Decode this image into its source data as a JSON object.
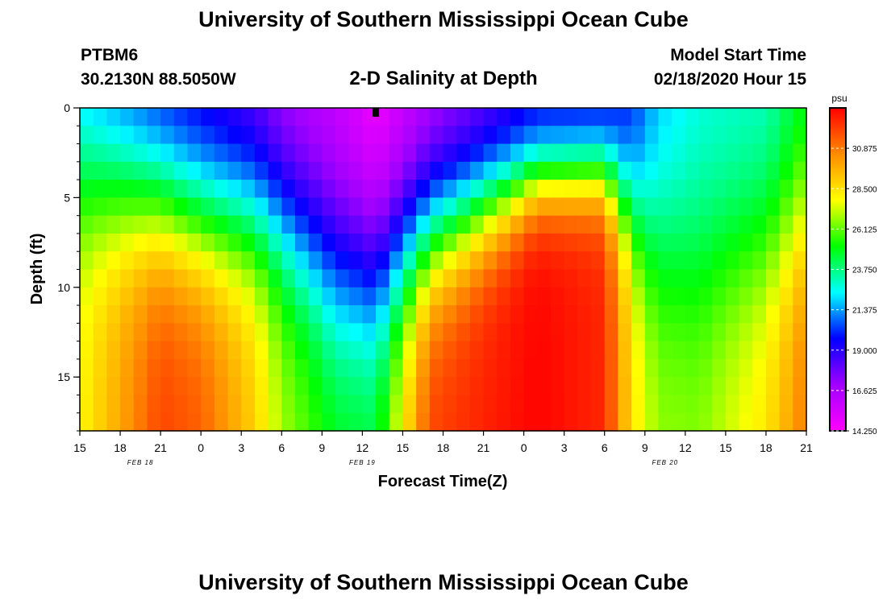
{
  "page": {
    "title_top": "University of Southern Mississippi Ocean Cube",
    "title_bottom": "University of Southern Mississippi Ocean Cube",
    "station_id": "PTBM6",
    "station_coords": "30.2130N 88.5050W",
    "plot_title": "2-D Salinity at Depth",
    "model_start_label": "Model Start Time",
    "model_start_value": "02/18/2020 Hour 15"
  },
  "chart_data": {
    "type": "heatmap",
    "variable": "Salinity",
    "units": "psu",
    "xlabel": "Forecast Time(Z)",
    "ylabel": "Depth (ft)",
    "x_ticks": [
      "15",
      "18",
      "21",
      "0",
      "3",
      "6",
      "9",
      "12",
      "15",
      "18",
      "21",
      "0",
      "3",
      "6",
      "9",
      "12",
      "15",
      "18",
      "21"
    ],
    "date_labels": [
      {
        "label": "FEB 18",
        "at_tick_index": 1.5
      },
      {
        "label": "FEB 19",
        "at_tick_index": 7
      },
      {
        "label": "FEB 20",
        "at_tick_index": 14.5
      }
    ],
    "y_ticks": [
      0,
      5,
      10,
      15
    ],
    "ylim": [
      0,
      18
    ],
    "x_range_hours": [
      0,
      54
    ],
    "colorbar_ticks": [
      14.25,
      16.625,
      19.0,
      21.375,
      23.75,
      26.125,
      28.5,
      30.875
    ],
    "colorbar_tick_labels": [
      "14.250",
      "16.625",
      "19.000",
      "21.375",
      "23.750",
      "26.125",
      "28.500",
      "30.875"
    ],
    "colorbar_range": [
      14.25,
      33.25
    ],
    "colorbar_colors": [
      "#ff00ff",
      "#a000ff",
      "#0000ff",
      "#00ffff",
      "#00ff00",
      "#ffff00",
      "#ff8c00",
      "#ff0000"
    ],
    "current_time_marker_hour": 22,
    "profile_hours": [
      0,
      6,
      9,
      13,
      15,
      19,
      22,
      26,
      34,
      39,
      41,
      43,
      46,
      51,
      54
    ],
    "surface_salinity": [
      21.0,
      19.0,
      18.5,
      17.5,
      16.3,
      15.5,
      14.3,
      16.0,
      19.0,
      19.0,
      19.5,
      21.5,
      22.5,
      22.8,
      24.5
    ],
    "bottom_salinity": [
      28.0,
      32.0,
      31.5,
      29.0,
      27.0,
      25.2,
      25.0,
      32.0,
      33.2,
      32.5,
      28.5,
      26.8,
      26.7,
      28.5,
      31.0
    ],
    "transition_depth_ft": [
      4.0,
      5.2,
      6.0,
      6.0,
      6.5,
      9.0,
      9.5,
      7.0,
      3.8,
      3.5,
      5.5,
      7.5,
      8.5,
      7.5,
      6.0
    ],
    "transition_width_ft": [
      2.8,
      2.6,
      2.6,
      2.6,
      2.8,
      3.2,
      3.2,
      2.5,
      1.4,
      1.4,
      2.2,
      3.2,
      3.4,
      3.0,
      2.8
    ]
  }
}
